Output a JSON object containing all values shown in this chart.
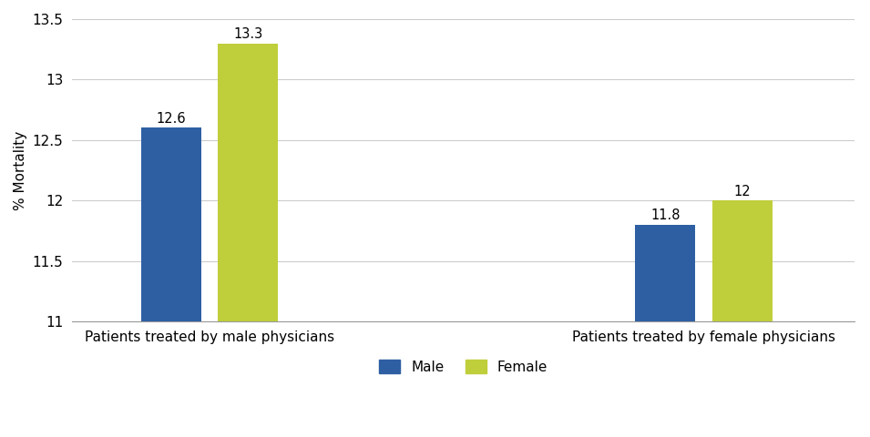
{
  "groups": [
    "Patients treated by male physicians",
    "Patients treated by female physicians"
  ],
  "male_values": [
    12.6,
    11.8
  ],
  "female_values": [
    13.3,
    12.0
  ],
  "male_color": "#2E5FA3",
  "female_color": "#BFCE3B",
  "ylabel": "% Mortality",
  "ylim": [
    11,
    13.5
  ],
  "yticks": [
    11,
    11.5,
    12,
    12.5,
    13,
    13.5
  ],
  "bar_width": 0.22,
  "group_centers": [
    1.0,
    2.8
  ],
  "legend_labels": [
    "Male",
    "Female"
  ],
  "label_fontsize": 11,
  "tick_fontsize": 11,
  "value_fontsize": 10.5,
  "background_color": "#ffffff",
  "xlim": [
    0.5,
    3.35
  ]
}
